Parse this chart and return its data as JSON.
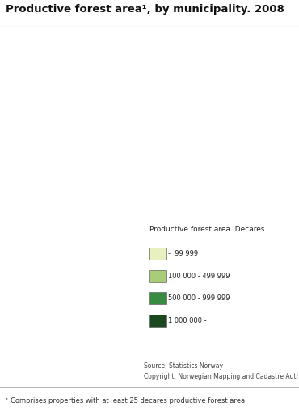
{
  "title": "Productive forest area¹, by municipality. 2008",
  "title_fontsize": 9.5,
  "source_text": "Source: Statistics Norway\nCopyright: Norwegian Mapping and Cadastre Authority",
  "footnote": "¹ Comprises properties with at least 25 decares productive forest area.",
  "legend_title": "Productive forest area. Decares",
  "legend_labels": [
    "-  99 999",
    "100 000 - 499 999",
    "500 000 - 999 999",
    "1 000 000 -"
  ],
  "legend_colors": [
    "#e8f0c0",
    "#a8cc78",
    "#3a8b42",
    "#1b4820"
  ],
  "background_color": "#ffffff",
  "border_color": "#999999",
  "figsize": [
    3.7,
    5.13
  ],
  "dpi": 100
}
